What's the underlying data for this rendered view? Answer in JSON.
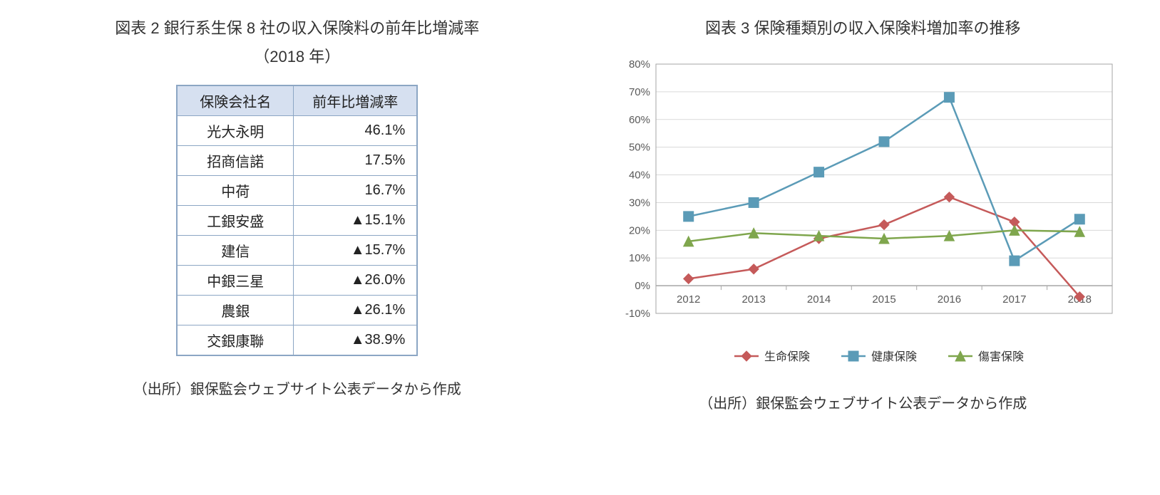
{
  "left": {
    "title_line1": "図表 2  銀行系生保 8 社の収入保険料の前年比増減率",
    "title_line2": "（2018 年）",
    "headers": [
      "保険会社名",
      "前年比増減率"
    ],
    "rows": [
      [
        "光大永明",
        "46.1%"
      ],
      [
        "招商信諾",
        "17.5%"
      ],
      [
        "中荷",
        "16.7%"
      ],
      [
        "工銀安盛",
        "▲15.1%"
      ],
      [
        "建信",
        "▲15.7%"
      ],
      [
        "中銀三星",
        "▲26.0%"
      ],
      [
        "農銀",
        "▲26.1%"
      ],
      [
        "交銀康聯",
        "▲38.9%"
      ]
    ],
    "source": "（出所）銀保監会ウェブサイト公表データから作成"
  },
  "right": {
    "title": "図表 3  保険種類別の収入保険料増加率の推移",
    "source": "（出所）銀保監会ウェブサイト公表データから作成",
    "chart": {
      "type": "line",
      "background_color": "#ffffff",
      "plot_border_color": "#a6a6a6",
      "grid_color": "#d9d9d9",
      "axis_font_size": 15,
      "axis_text_color": "#595959",
      "legend_font_size": 16,
      "legend_text_color": "#333333",
      "x_categories": [
        "2012",
        "2013",
        "2014",
        "2015",
        "2016",
        "2017",
        "2018"
      ],
      "y_min": -10,
      "y_max": 80,
      "y_step": 10,
      "y_suffix": "%",
      "line_width": 2.5,
      "marker_size": 7,
      "series": [
        {
          "name": "生命保険",
          "color": "#c55a5a",
          "marker": "diamond",
          "values": [
            2.5,
            6,
            17,
            22,
            32,
            23,
            -4
          ]
        },
        {
          "name": "健康保険",
          "color": "#5b9bb7",
          "marker": "square",
          "values": [
            25,
            30,
            41,
            52,
            68,
            9,
            24
          ]
        },
        {
          "name": "傷害保険",
          "color": "#7fa64d",
          "marker": "triangle",
          "values": [
            16,
            19,
            18,
            17,
            18,
            20,
            19.5
          ]
        }
      ]
    }
  }
}
